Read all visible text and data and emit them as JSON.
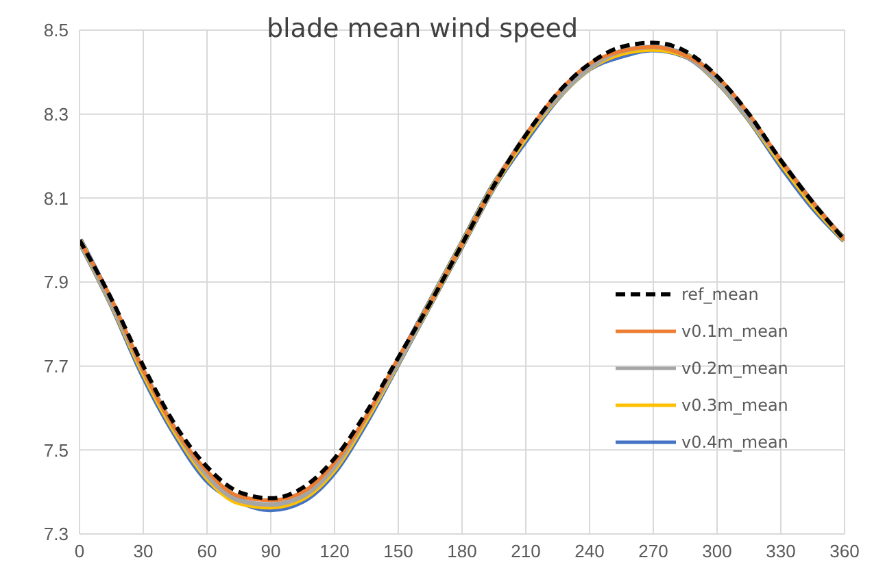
{
  "chart_data": {
    "type": "line",
    "title": "blade mean wind speed",
    "x": [
      0,
      15,
      30,
      45,
      60,
      75,
      90,
      105,
      120,
      135,
      150,
      165,
      180,
      195,
      210,
      225,
      240,
      255,
      270,
      285,
      300,
      315,
      330,
      345,
      360
    ],
    "xlim": [
      0,
      360
    ],
    "xticks": [
      0,
      30,
      60,
      90,
      120,
      150,
      180,
      210,
      240,
      270,
      300,
      330,
      360
    ],
    "ylim": [
      7.3,
      8.5
    ],
    "yticks": [
      7.3,
      7.5,
      7.7,
      7.9,
      8.1,
      8.3,
      8.5
    ],
    "grid": true,
    "legend": "bottom right",
    "marker": "none",
    "series": [
      {
        "name": "ref_mean",
        "color": "#000000",
        "line_style": "dashed",
        "values": [
          8.0,
          7.86,
          7.7,
          7.56,
          7.46,
          7.4,
          7.385,
          7.41,
          7.48,
          7.59,
          7.72,
          7.85,
          7.99,
          8.13,
          8.25,
          8.35,
          8.42,
          8.46,
          8.47,
          8.45,
          8.39,
          8.3,
          8.19,
          8.09,
          8.0
        ]
      },
      {
        "name": "v0.1m_mean",
        "color": "#ed7d31",
        "line_style": "solid",
        "values": [
          8.0,
          7.86,
          7.69,
          7.55,
          7.45,
          7.39,
          7.38,
          7.4,
          7.47,
          7.58,
          7.72,
          7.85,
          7.99,
          8.13,
          8.25,
          8.35,
          8.42,
          8.45,
          8.46,
          8.44,
          8.39,
          8.3,
          8.19,
          8.09,
          8.0
        ]
      },
      {
        "name": "v0.2m_mean",
        "color": "#a5a5a5",
        "line_style": "solid",
        "values": [
          8.0,
          7.85,
          7.69,
          7.55,
          7.44,
          7.38,
          7.37,
          7.39,
          7.46,
          7.58,
          7.71,
          7.85,
          7.99,
          8.13,
          8.25,
          8.34,
          8.41,
          8.45,
          8.46,
          8.44,
          8.38,
          8.29,
          8.19,
          8.09,
          8.0
        ]
      },
      {
        "name": "v0.3m_mean",
        "color": "#ffc000",
        "line_style": "solid",
        "values": [
          8.0,
          7.85,
          7.685,
          7.545,
          7.435,
          7.375,
          7.365,
          7.385,
          7.455,
          7.575,
          7.71,
          7.85,
          7.99,
          8.13,
          8.245,
          8.34,
          8.41,
          8.445,
          8.455,
          8.44,
          8.38,
          8.29,
          8.185,
          8.085,
          8.0
        ]
      },
      {
        "name": "v0.4m_mean",
        "color": "#4472c4",
        "line_style": "solid",
        "values": [
          8.0,
          7.85,
          7.68,
          7.54,
          7.43,
          7.38,
          7.36,
          7.38,
          7.45,
          7.57,
          7.71,
          7.85,
          7.99,
          8.13,
          8.24,
          8.34,
          8.41,
          8.44,
          8.455,
          8.44,
          8.38,
          8.29,
          8.18,
          8.08,
          8.0
        ]
      }
    ]
  }
}
